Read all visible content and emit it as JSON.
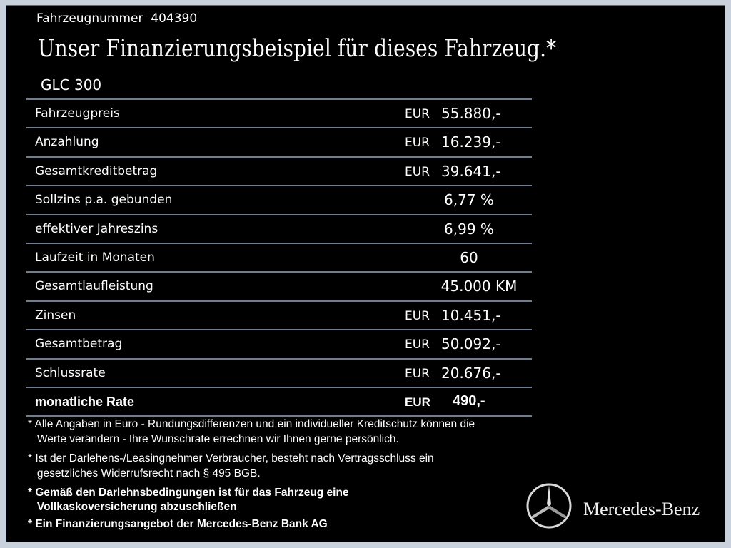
{
  "header": {
    "vehicle_number_label": "Fahrzeugnummer",
    "vehicle_number": "404390",
    "title": "Unser Finanzierungsbeispiel für dieses Fahrzeug.*",
    "model": "GLC 300"
  },
  "rows": [
    {
      "label": "Fahrzeugpreis",
      "currency": "EUR",
      "value": "55.880,-"
    },
    {
      "label": "Anzahlung",
      "currency": "EUR",
      "value": "16.239,-"
    },
    {
      "label": "Gesamtkreditbetrag",
      "currency": "EUR",
      "value": "39.641,-"
    },
    {
      "label": "Sollzins p.a. gebunden",
      "value": "6,77 %"
    },
    {
      "label": "effektiver Jahreszins",
      "value": "6,99 %"
    },
    {
      "label": "Laufzeit in Monaten",
      "value": "60"
    },
    {
      "label": "Gesamtlaufleistung",
      "value": "45.000 KM"
    },
    {
      "label": "Zinsen",
      "currency": "EUR",
      "value": "10.451,-"
    },
    {
      "label": "Gesamtbetrag",
      "currency": "EUR",
      "value": "50.092,-"
    },
    {
      "label": "Schlussrate",
      "currency": "EUR",
      "value": "20.676,-"
    },
    {
      "label": "monatliche Rate",
      "currency": "EUR",
      "value": "490,-"
    }
  ],
  "footnotes": [
    "* Alle Angaben in Euro - Rundungsdifferenzen und ein individueller Kreditschutz können die",
    "   Werte verändern - Ihre Wunschrate errechnen wir Ihnen gerne persönlich.",
    "* Ist der Darlehens-/Leasingnehmer Verbraucher, besteht nach Vertragsschluss ein",
    "   gesetzliches Widerrufsrecht nach § 495 BGB.",
    "* Gemäß den Darlehnsbedingungen ist für das Fahrzeug eine",
    "   Vollkaskoversicherung abzuschließen",
    "* Ein Finanzierungsangebot der Mercedes-Benz Bank AG"
  ],
  "brand": {
    "name": "Mercedes-Benz",
    "logo_icon": "three-pointed-star-icon"
  },
  "colors": {
    "background": "#000000",
    "frame": "#c9d2dc",
    "divider": "#6d7d92"
  }
}
